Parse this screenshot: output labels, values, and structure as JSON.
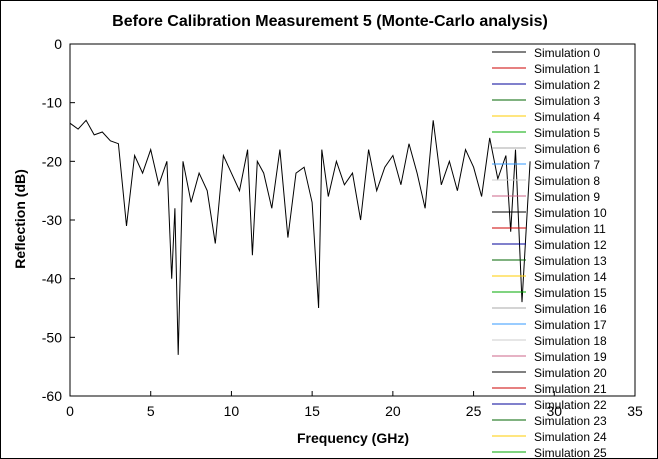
{
  "chart_data": {
    "type": "line",
    "title": "Before Calibration Measurement 5 (Monte-Carlo analysis)",
    "xlabel": "Frequency (GHz)",
    "ylabel": "Reflection (dB)",
    "xlim": [
      0,
      35
    ],
    "ylim": [
      -60,
      0
    ],
    "xticks": [
      "0",
      "5",
      "10",
      "15",
      "20",
      "25",
      "30",
      "35"
    ],
    "yticks": [
      "0",
      "-10",
      "-20",
      "-30",
      "-40",
      "-50",
      "-60"
    ],
    "grid": false,
    "legend_position": "top-right",
    "series": [
      {
        "name": "Simulation 0",
        "color": "#000000",
        "x": [
          0,
          0.5,
          1.0,
          1.5,
          2.0,
          2.5,
          3.0,
          3.5,
          4.0,
          4.5,
          5.0,
          5.5,
          6.0,
          6.3,
          6.5,
          6.7,
          7.0,
          7.5,
          8.0,
          8.5,
          9.0,
          9.5,
          10.0,
          10.5,
          11.0,
          11.3,
          11.6,
          12.0,
          12.5,
          13.0,
          13.5,
          14.0,
          14.5,
          15.0,
          15.4,
          15.6,
          16.0,
          16.5,
          17.0,
          17.5,
          18.0,
          18.5,
          19.0,
          19.5,
          20.0,
          20.5,
          21.0,
          21.5,
          22.0,
          22.5,
          23.0,
          23.5,
          24.0,
          24.5,
          25.0,
          25.5,
          26.0,
          26.5,
          27.0,
          27.3,
          27.6,
          28.0,
          28.5
        ],
        "values": [
          -13.5,
          -14.5,
          -13,
          -15.5,
          -15,
          -16.5,
          -17,
          -31,
          -19,
          -22,
          -18,
          -24,
          -20,
          -40,
          -28,
          -53,
          -20,
          -27,
          -22,
          -25,
          -34,
          -19,
          -22,
          -25,
          -18,
          -36,
          -20,
          -22,
          -28,
          -18,
          -33,
          -22,
          -21,
          -27,
          -45,
          -18,
          -26,
          -20,
          -24,
          -22,
          -30,
          -18,
          -25,
          -21,
          -19,
          -24,
          -17,
          -22,
          -28,
          -13,
          -24,
          -20,
          -25,
          -18,
          -21,
          -26,
          -16,
          -23,
          -19,
          -32,
          -18,
          -44,
          -20
        ]
      },
      {
        "name": "Simulation 1",
        "color": "#cc0000"
      },
      {
        "name": "Simulation 2",
        "color": "#000099"
      },
      {
        "name": "Simulation 3",
        "color": "#006600"
      },
      {
        "name": "Simulation 4",
        "color": "#ffcc00"
      },
      {
        "name": "Simulation 5",
        "color": "#00aa00"
      },
      {
        "name": "Simulation 6",
        "color": "#aaaaaa"
      },
      {
        "name": "Simulation 7",
        "color": "#3399ff"
      },
      {
        "name": "Simulation 8",
        "color": "#cccccc"
      },
      {
        "name": "Simulation 9",
        "color": "#cc6688"
      },
      {
        "name": "Simulation 10",
        "color": "#000000"
      },
      {
        "name": "Simulation 11",
        "color": "#cc0000"
      },
      {
        "name": "Simulation 12",
        "color": "#000099"
      },
      {
        "name": "Simulation 13",
        "color": "#006600"
      },
      {
        "name": "Simulation 14",
        "color": "#ffcc00"
      },
      {
        "name": "Simulation 15",
        "color": "#00aa00"
      },
      {
        "name": "Simulation 16",
        "color": "#aaaaaa"
      },
      {
        "name": "Simulation 17",
        "color": "#3399ff"
      },
      {
        "name": "Simulation 18",
        "color": "#cccccc"
      },
      {
        "name": "Simulation 19",
        "color": "#cc6688"
      },
      {
        "name": "Simulation 20",
        "color": "#000000"
      },
      {
        "name": "Simulation 21",
        "color": "#cc0000"
      },
      {
        "name": "Simulation 22",
        "color": "#000099"
      },
      {
        "name": "Simulation 23",
        "color": "#006600"
      },
      {
        "name": "Simulation 24",
        "color": "#ffcc00"
      },
      {
        "name": "Simulation 25",
        "color": "#00aa00"
      }
    ]
  }
}
